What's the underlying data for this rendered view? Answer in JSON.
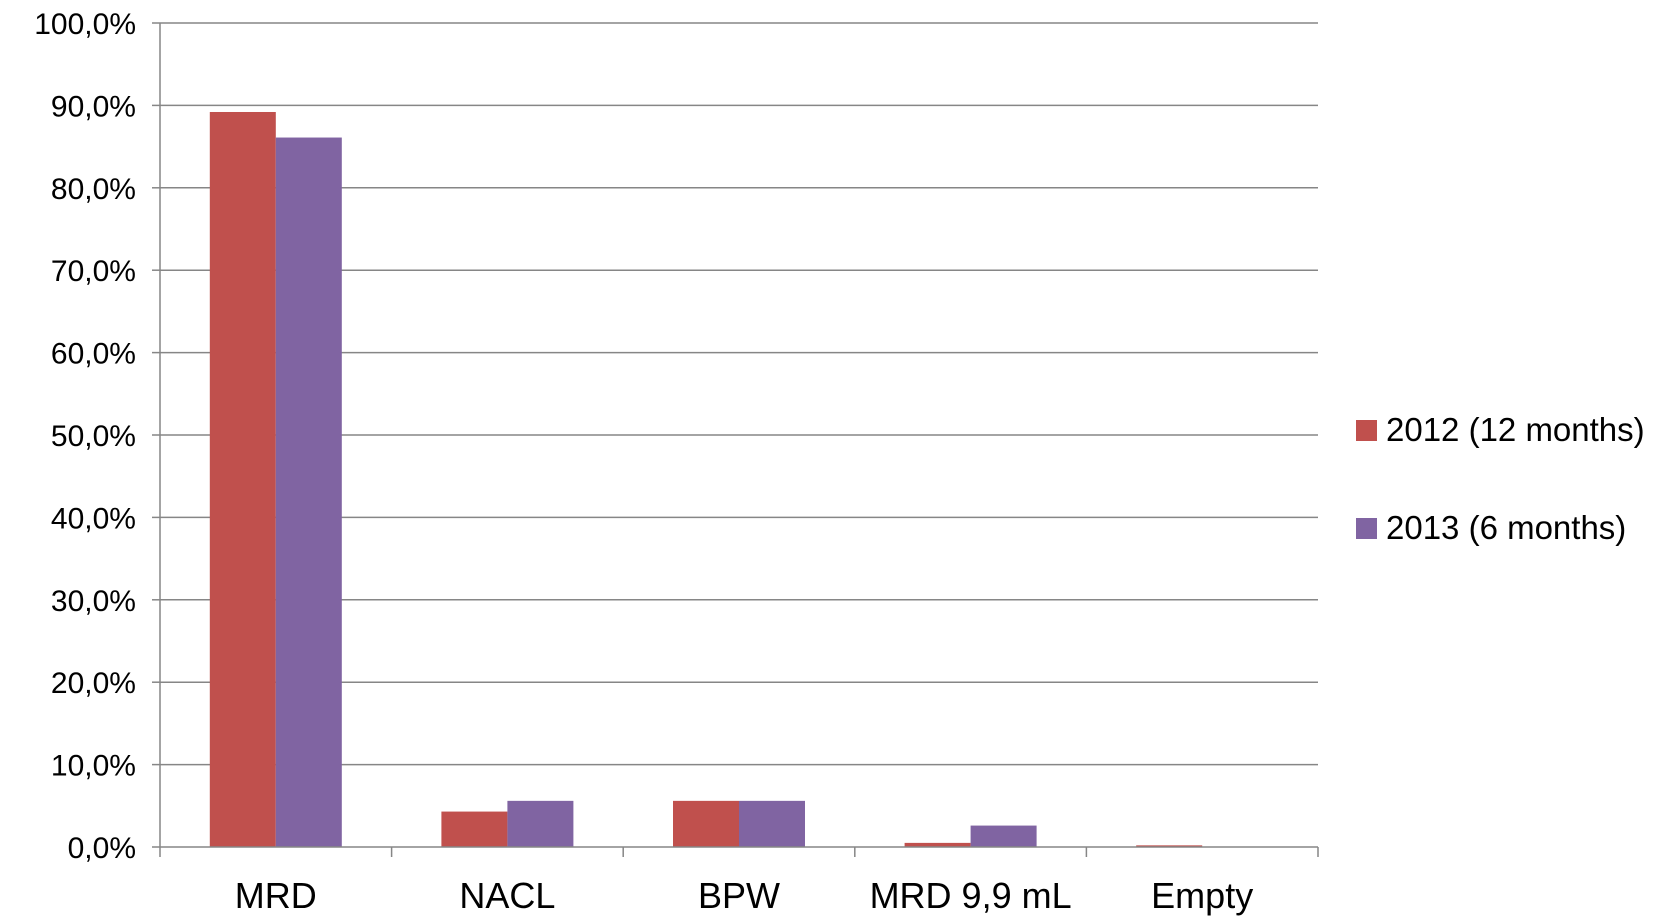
{
  "chart_data": {
    "type": "bar",
    "title": "",
    "xlabel": "",
    "ylabel": "",
    "categories": [
      "MRD",
      "NACL",
      "BPW",
      "MRD 9,9 mL",
      "Empty"
    ],
    "series": [
      {
        "name": "2012 (12 months)",
        "color": "#C0504D",
        "values": [
          89.2,
          4.3,
          5.6,
          0.5,
          0.2
        ]
      },
      {
        "name": "2013 (6 months)",
        "color": "#8064A2",
        "values": [
          86.1,
          5.6,
          5.6,
          2.6,
          0.0
        ]
      }
    ],
    "ylim": [
      0,
      100
    ],
    "yticks": [
      0,
      10,
      20,
      30,
      40,
      50,
      60,
      70,
      80,
      90,
      100
    ],
    "ytick_labels": [
      "0,0%",
      "10,0%",
      "20,0%",
      "30,0%",
      "40,0%",
      "50,0%",
      "60,0%",
      "70,0%",
      "80,0%",
      "90,0%",
      "100,0%"
    ],
    "grid": true,
    "legend_position": "right"
  }
}
